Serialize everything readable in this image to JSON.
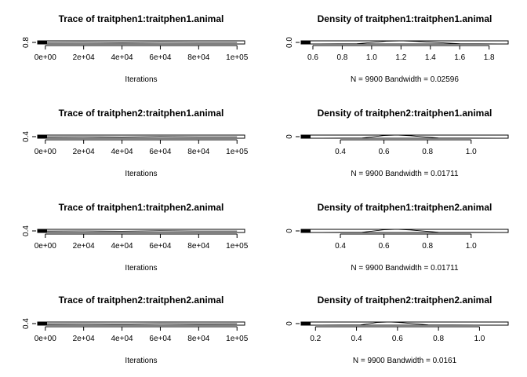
{
  "chart_data": [
    {
      "type": "line",
      "title": "Trace of traitphen1:traitphen1.animal",
      "xlabel": "Iterations",
      "x_ticks": [
        "0e+00",
        "2e+04",
        "4e+04",
        "6e+04",
        "8e+04",
        "1e+05"
      ],
      "x_tick_values": [
        0,
        20000,
        40000,
        60000,
        80000,
        100000
      ],
      "xlim": [
        -4000,
        104000
      ],
      "y_ticks": [
        "0.8"
      ],
      "y_tick_values": [
        0.8
      ],
      "ylim": [
        0.55,
        1.95
      ],
      "series": [
        {
          "x": [
            0,
            20000,
            40000,
            60000,
            80000,
            100000
          ],
          "values": [
            1.2,
            1.25,
            1.15,
            1.3,
            1.2,
            1.22
          ]
        }
      ]
    },
    {
      "type": "line",
      "title": "Density of traitphen1:traitphen1.animal",
      "xlabel": "N = 9900   Bandwidth = 0.02596",
      "x_ticks": [
        "0.6",
        "0.8",
        "1.0",
        "1.2",
        "1.4",
        "1.6",
        "1.8"
      ],
      "x_tick_values": [
        0.6,
        0.8,
        1.0,
        1.2,
        1.4,
        1.6,
        1.8
      ],
      "xlim": [
        0.52,
        1.93
      ],
      "y_ticks": [
        "0.0"
      ],
      "y_tick_values": [
        0.0
      ],
      "ylim": [
        0,
        4
      ],
      "series": [
        {
          "x": [
            0.52,
            0.9,
            1.1,
            1.2,
            1.3,
            1.6,
            1.93
          ],
          "values": [
            0,
            0.3,
            3.5,
            4.0,
            3.3,
            0.3,
            0
          ]
        }
      ]
    },
    {
      "type": "line",
      "title": "Trace of traitphen2:traitphen1.animal",
      "xlabel": "Iterations",
      "x_ticks": [
        "0e+00",
        "2e+04",
        "4e+04",
        "6e+04",
        "8e+04",
        "1e+05"
      ],
      "x_tick_values": [
        0,
        20000,
        40000,
        60000,
        80000,
        100000
      ],
      "xlim": [
        -4000,
        104000
      ],
      "y_ticks": [
        "0.4"
      ],
      "y_tick_values": [
        0.4
      ],
      "ylim": [
        0.22,
        1.17
      ],
      "series": [
        {
          "x": [
            0,
            20000,
            40000,
            60000,
            80000,
            100000
          ],
          "values": [
            0.65,
            0.7,
            0.6,
            0.75,
            0.66,
            0.68
          ]
        }
      ]
    },
    {
      "type": "line",
      "title": "Density of traitphen2:traitphen1.animal",
      "xlabel": "N = 9900   Bandwidth = 0.01711",
      "x_ticks": [
        "0.4",
        "0.6",
        "0.8",
        "1.0"
      ],
      "x_tick_values": [
        0.4,
        0.6,
        0.8,
        1.0
      ],
      "xlim": [
        0.22,
        1.17
      ],
      "y_ticks": [
        "0"
      ],
      "y_tick_values": [
        0
      ],
      "ylim": [
        0,
        5
      ],
      "series": [
        {
          "x": [
            0.22,
            0.5,
            0.6,
            0.66,
            0.72,
            0.85,
            1.17
          ],
          "values": [
            0,
            0.4,
            4.2,
            5.0,
            4.0,
            0.4,
            0
          ]
        }
      ]
    },
    {
      "type": "line",
      "title": "Trace of traitphen1:traitphen2.animal",
      "xlabel": "Iterations",
      "x_ticks": [
        "0e+00",
        "2e+04",
        "4e+04",
        "6e+04",
        "8e+04",
        "1e+05"
      ],
      "x_tick_values": [
        0,
        20000,
        40000,
        60000,
        80000,
        100000
      ],
      "xlim": [
        -4000,
        104000
      ],
      "y_ticks": [
        "0.4"
      ],
      "y_tick_values": [
        0.4
      ],
      "ylim": [
        0.22,
        1.17
      ],
      "series": [
        {
          "x": [
            0,
            20000,
            40000,
            60000,
            80000,
            100000
          ],
          "values": [
            0.65,
            0.7,
            0.6,
            0.75,
            0.66,
            0.68
          ]
        }
      ]
    },
    {
      "type": "line",
      "title": "Density of traitphen1:traitphen2.animal",
      "xlabel": "N = 9900   Bandwidth = 0.01711",
      "x_ticks": [
        "0.4",
        "0.6",
        "0.8",
        "1.0"
      ],
      "x_tick_values": [
        0.4,
        0.6,
        0.8,
        1.0
      ],
      "xlim": [
        0.22,
        1.17
      ],
      "y_ticks": [
        "0"
      ],
      "y_tick_values": [
        0
      ],
      "ylim": [
        0,
        5
      ],
      "series": [
        {
          "x": [
            0.22,
            0.5,
            0.6,
            0.66,
            0.72,
            0.85,
            1.17
          ],
          "values": [
            0,
            0.4,
            4.2,
            5.0,
            4.0,
            0.4,
            0
          ]
        }
      ]
    },
    {
      "type": "line",
      "title": "Trace of traitphen2:traitphen2.animal",
      "xlabel": "Iterations",
      "x_ticks": [
        "0e+00",
        "2e+04",
        "4e+04",
        "6e+04",
        "8e+04",
        "1e+05"
      ],
      "x_tick_values": [
        0,
        20000,
        40000,
        60000,
        80000,
        100000
      ],
      "xlim": [
        -4000,
        104000
      ],
      "y_ticks": [
        "0.4"
      ],
      "y_tick_values": [
        0.4
      ],
      "ylim": [
        0.13,
        1.14
      ],
      "series": [
        {
          "x": [
            0,
            20000,
            40000,
            60000,
            80000,
            100000
          ],
          "values": [
            0.55,
            0.6,
            0.5,
            0.65,
            0.56,
            0.58
          ]
        }
      ]
    },
    {
      "type": "line",
      "title": "Density of traitphen2:traitphen2.animal",
      "xlabel": "N = 9900   Bandwidth = 0.0161",
      "x_ticks": [
        "0.2",
        "0.4",
        "0.6",
        "0.8",
        "1.0"
      ],
      "x_tick_values": [
        0.2,
        0.4,
        0.6,
        0.8,
        1.0
      ],
      "xlim": [
        0.13,
        1.14
      ],
      "y_ticks": [
        "0"
      ],
      "y_tick_values": [
        0
      ],
      "ylim": [
        0,
        5
      ],
      "series": [
        {
          "x": [
            0.13,
            0.42,
            0.5,
            0.56,
            0.62,
            0.75,
            1.14
          ],
          "values": [
            0,
            0.4,
            4.3,
            5.0,
            4.0,
            0.4,
            0
          ]
        }
      ]
    }
  ]
}
